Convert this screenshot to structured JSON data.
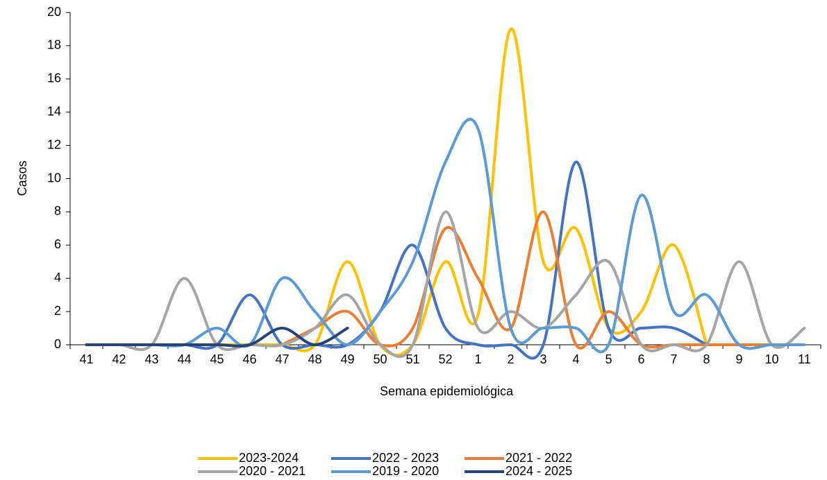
{
  "chart_data": {
    "type": "line",
    "x_label": "Semana epidemiológica",
    "y_label": "Casos",
    "categories": [
      "41",
      "42",
      "43",
      "44",
      "45",
      "46",
      "47",
      "48",
      "49",
      "50",
      "51",
      "52",
      "1",
      "2",
      "3",
      "4",
      "5",
      "6",
      "7",
      "8",
      "9",
      "10",
      "11"
    ],
    "ylim": [
      0,
      20
    ],
    "yticks": [
      0,
      2,
      4,
      6,
      8,
      10,
      12,
      14,
      16,
      18,
      20
    ],
    "smooth": true,
    "series": [
      {
        "name": "2023-2024",
        "color": "#FFC000",
        "values": [
          0,
          0,
          0,
          0,
          0,
          0,
          0,
          0,
          5,
          0,
          0,
          5,
          1.8,
          19,
          5,
          7,
          1,
          2,
          6,
          0,
          null,
          null,
          null
        ]
      },
      {
        "name": "2022 - 2023",
        "color": "#4472C4",
        "values": [
          0,
          0,
          0,
          0,
          0,
          3,
          0,
          0,
          0,
          2,
          6,
          1,
          0,
          0,
          0,
          11,
          1,
          1,
          1,
          0,
          null,
          null,
          null
        ]
      },
      {
        "name": "2021 - 2022",
        "color": "#ED7D31",
        "values": [
          null,
          null,
          null,
          null,
          null,
          null,
          0,
          1,
          2,
          0,
          1,
          7,
          4,
          1,
          8,
          0,
          2,
          0,
          0,
          0,
          0,
          0,
          null
        ]
      },
      {
        "name": "2020 - 2021",
        "color": "#A5A5A5",
        "values": [
          0,
          0,
          0,
          4,
          0,
          0,
          0,
          1,
          3,
          0,
          0,
          8,
          1,
          2,
          1,
          3,
          5,
          0,
          0,
          0,
          5,
          0,
          1
        ]
      },
      {
        "name": "2019 - 2020",
        "color": "#5B9BD5",
        "values": [
          0,
          0,
          0,
          0,
          1,
          0,
          4,
          2,
          0,
          2,
          5,
          11,
          13,
          1,
          1,
          1,
          0,
          9,
          2,
          3,
          0,
          0,
          0
        ]
      },
      {
        "name": "2024 - 2025",
        "color": "#264478",
        "values": [
          0,
          0,
          0,
          0,
          0,
          0,
          1,
          0,
          1,
          null,
          null,
          null,
          null,
          null,
          null,
          null,
          null,
          null,
          null,
          null,
          null,
          null,
          null
        ]
      }
    ]
  }
}
